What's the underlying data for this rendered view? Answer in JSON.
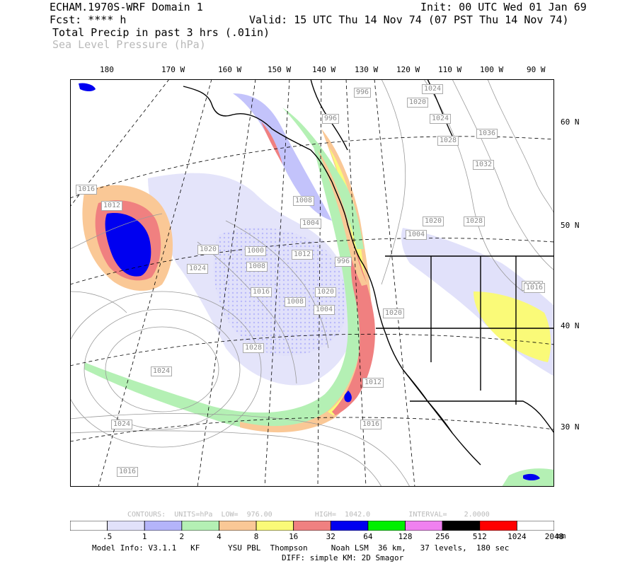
{
  "header": {
    "line1_left": "ECHAM.1970S-WRF Domain 1",
    "line1_right": "Init: 00 UTC Wed 01 Jan 69",
    "line2_left": "Fcst: **** h",
    "line2_right": "Valid: 15 UTC Thu 14 Nov 74 (07 PST Thu 14 Nov 74)",
    "field1": "Total Precip in past 3 hrs (.01in)",
    "field2": "Sea Level Pressure (hPa)"
  },
  "lon_labels": [
    "180",
    "170 W",
    "160 W",
    "150 W",
    "140 W",
    "130 W",
    "120 W",
    "110 W",
    "100 W",
    "90 W"
  ],
  "lat_labels": [
    "60 N",
    "50 N",
    "40 N",
    "30 N"
  ],
  "isobar_labels": [
    "996",
    "1024",
    "1020",
    "996",
    "1024",
    "1036",
    "1028",
    "1032",
    "1016",
    "1012",
    "1008",
    "1004",
    "1020",
    "1028",
    "1004",
    "1020",
    "996",
    "1000",
    "1012",
    "1008",
    "1024",
    "1016",
    "1020",
    "1008",
    "1004",
    "1020",
    "1016",
    "1028",
    "1024",
    "1012",
    "1016",
    "1024",
    "1016",
    "1016"
  ],
  "contours_info": "CONTOURS:  UNITS=hPa  LOW=  976.00          HIGH=  1042.0         INTERVAL=    2.0000",
  "colorbar": {
    "colors": [
      "#ffffff",
      "#e1e1fa",
      "#b4b4fa",
      "#b4f0b4",
      "#fac896",
      "#fafa78",
      "#f08080",
      "#0000f0",
      "#00f000",
      "#f080f0",
      "#000000",
      "#ff0000",
      "#ffffff"
    ],
    "labels": [
      ".5",
      "1",
      "2",
      "4",
      "8",
      "16",
      "32",
      "64",
      "128",
      "256",
      "512",
      "1024",
      "2048"
    ],
    "units": "mm"
  },
  "footer": {
    "line1": "Model Info: V3.1.1   KF      YSU PBL  Thompson     Noah LSM  36 km,   37 levels,  180 sec",
    "line2": "DIFF: simple KM: 2D Smagor"
  }
}
